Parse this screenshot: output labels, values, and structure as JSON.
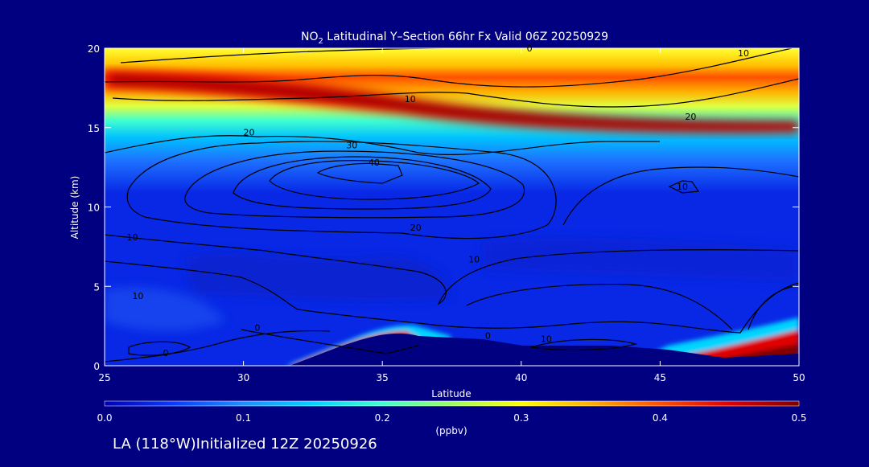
{
  "chart_data": {
    "type": "heatmap",
    "title": {
      "species": "NO",
      "subscript": "2",
      "rest": " Latitudinal Y–Section 66hr  Fx Valid 06Z 20250929"
    },
    "xlabel": "Latitude",
    "ylabel": "Altitude (km)",
    "xlim": [
      25,
      50
    ],
    "ylim": [
      0,
      20
    ],
    "x_ticks": [
      "25",
      "30",
      "35",
      "40",
      "45",
      "50"
    ],
    "y_ticks": [
      "0",
      "5",
      "10",
      "15",
      "20"
    ],
    "colorbar": {
      "min": 0.0,
      "max": 0.5,
      "ticks": [
        "0.0",
        "0.1",
        "0.2",
        "0.3",
        "0.4",
        "0.5"
      ],
      "label": "(ppbv)",
      "colors": [
        "#0000b8",
        "#0a3cff",
        "#1e90ff",
        "#00d4ff",
        "#40ffd0",
        "#9cff60",
        "#ffff00",
        "#ffb000",
        "#ff5000",
        "#e00000",
        "#800000"
      ]
    },
    "field_description": {
      "stratospheric_max_km": [
        17.5,
        15.5
      ],
      "surface_max_latitudes": [
        [
          33,
          36
        ],
        [
          46,
          50
        ]
      ],
      "surface_max_value": 0.5,
      "stratospheric_max_value": 0.48
    },
    "contour_labels": [
      "0",
      "10",
      "10",
      "20",
      "30",
      "40",
      "20",
      "10",
      "10",
      "10",
      "0",
      "0",
      "0",
      "10",
      "20",
      "10"
    ]
  },
  "footer": {
    "text": "LA (118°W)Initialized 12Z 20250926"
  }
}
